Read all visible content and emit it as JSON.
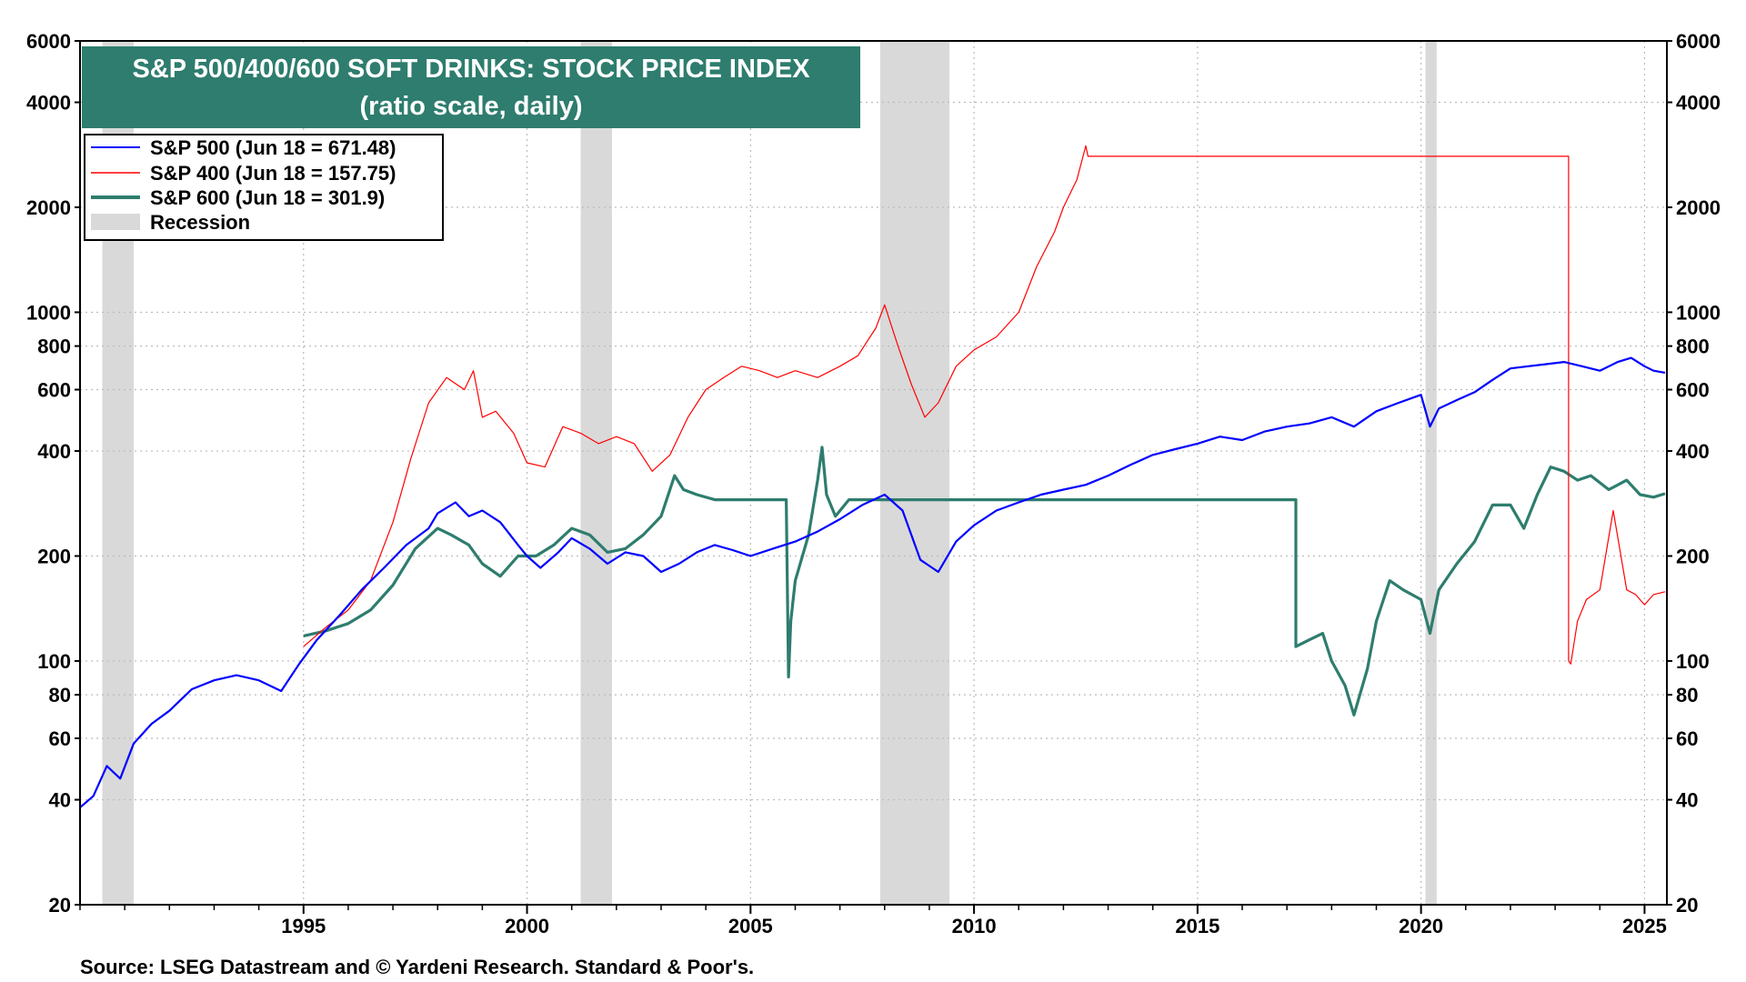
{
  "chart_data": {
    "type": "line",
    "title": "S&P 500/400/600 SOFT DRINKS: STOCK PRICE INDEX",
    "subtitle": "(ratio scale, daily)",
    "source": "Source: LSEG Datastream and © Yardeni Research. Standard & Poor's.",
    "y_scale": "log",
    "ylim": [
      20,
      6000
    ],
    "xlim": [
      1990.0,
      2025.5
    ],
    "y_ticks": [
      20,
      40,
      60,
      80,
      100,
      200,
      400,
      600,
      800,
      1000,
      2000,
      4000,
      6000
    ],
    "y_tick_labels": [
      "20",
      "40",
      "60",
      "80",
      "100",
      "200",
      "400",
      "600",
      "800",
      "1000",
      "2000",
      "4000",
      "6000"
    ],
    "x_ticks": [
      1995,
      2000,
      2005,
      2010,
      2015,
      2020,
      2025
    ],
    "x_tick_labels": [
      "1995",
      "2000",
      "2005",
      "2010",
      "2015",
      "2020",
      "2025"
    ],
    "grid": true,
    "legend_position": "top-left",
    "recessions": [
      {
        "label": "Recession",
        "start": 1990.5,
        "end": 1991.2
      },
      {
        "label": "Recession",
        "start": 2001.2,
        "end": 2001.9
      },
      {
        "label": "Recession",
        "start": 2007.9,
        "end": 2009.45
      },
      {
        "label": "Recession",
        "start": 2020.1,
        "end": 2020.35
      }
    ],
    "legend": [
      {
        "name": "S&P 500 (Jun 18 = 671.48)",
        "color": "#0000ff"
      },
      {
        "name": "S&P 400 (Jun 18 = 157.75)",
        "color": "#ff0000"
      },
      {
        "name": "S&P 600 (Jun 18 = 301.9)",
        "color": "#2e7d6e"
      },
      {
        "name": "Recession",
        "color": "#d9d9d9"
      }
    ],
    "series": [
      {
        "name": "S&P 500",
        "color": "#0000ff",
        "width": 2.2,
        "x": [
          1990.0,
          1990.3,
          1990.6,
          1990.9,
          1991.2,
          1991.6,
          1992.0,
          1992.5,
          1993.0,
          1993.5,
          1994.0,
          1994.5,
          1994.9,
          1995.3,
          1995.8,
          1996.3,
          1996.8,
          1997.3,
          1997.8,
          1998.0,
          1998.4,
          1998.7,
          1999.0,
          1999.4,
          1999.8,
          2000.0,
          2000.3,
          2000.7,
          2001.0,
          2001.4,
          2001.8,
          2002.2,
          2002.6,
          2003.0,
          2003.4,
          2003.8,
          2004.2,
          2004.6,
          2005.0,
          2005.5,
          2006.0,
          2006.5,
          2007.0,
          2007.5,
          2008.0,
          2008.4,
          2008.8,
          2009.2,
          2009.6,
          2010.0,
          2010.5,
          2011.0,
          2011.5,
          2012.0,
          2012.5,
          2013.0,
          2013.5,
          2014.0,
          2014.5,
          2015.0,
          2015.5,
          2016.0,
          2016.5,
          2017.0,
          2017.5,
          2018.0,
          2018.5,
          2019.0,
          2019.5,
          2020.0,
          2020.2,
          2020.4,
          2020.8,
          2021.2,
          2021.6,
          2022.0,
          2022.4,
          2022.8,
          2023.2,
          2023.6,
          2024.0,
          2024.4,
          2024.7,
          2025.0,
          2025.2,
          2025.46
        ],
        "y": [
          38,
          41,
          50,
          46,
          58,
          66,
          72,
          83,
          88,
          91,
          88,
          82,
          98,
          115,
          135,
          160,
          185,
          215,
          240,
          265,
          285,
          260,
          270,
          250,
          215,
          200,
          185,
          205,
          225,
          210,
          190,
          205,
          200,
          180,
          190,
          205,
          215,
          208,
          200,
          210,
          220,
          235,
          255,
          280,
          300,
          270,
          195,
          180,
          220,
          245,
          270,
          285,
          300,
          310,
          320,
          340,
          365,
          390,
          405,
          420,
          440,
          430,
          455,
          470,
          480,
          500,
          470,
          520,
          550,
          580,
          470,
          530,
          560,
          590,
          640,
          690,
          700,
          710,
          720,
          700,
          680,
          720,
          740,
          700,
          680,
          671
        ]
      },
      {
        "name": "S&P 400",
        "color": "#ff0000",
        "width": 1.2,
        "x": [
          1995.0,
          1995.5,
          1996.0,
          1996.5,
          1997.0,
          1997.4,
          1997.8,
          1998.2,
          1998.6,
          1998.8,
          1999.0,
          1999.3,
          1999.7,
          2000.0,
          2000.4,
          2000.8,
          2001.2,
          2001.6,
          2002.0,
          2002.4,
          2002.8,
          2003.2,
          2003.6,
          2004.0,
          2004.4,
          2004.8,
          2005.2,
          2005.6,
          2006.0,
          2006.5,
          2007.0,
          2007.4,
          2007.8,
          2008.0,
          2008.3,
          2008.6,
          2008.9,
          2009.2,
          2009.6,
          2010.0,
          2010.5,
          2011.0,
          2011.4,
          2011.8,
          2012.0,
          2012.3,
          2012.5,
          2012.55,
          2015.0,
          2020.0,
          2023.3,
          2023.3,
          2023.35,
          2023.5,
          2023.7,
          2024.0,
          2024.3,
          2024.6,
          2024.8,
          2025.0,
          2025.2,
          2025.46
        ],
        "y": [
          110,
          125,
          140,
          170,
          250,
          380,
          550,
          650,
          600,
          680,
          500,
          520,
          450,
          370,
          360,
          470,
          450,
          420,
          440,
          420,
          350,
          390,
          500,
          600,
          650,
          700,
          680,
          650,
          680,
          650,
          700,
          750,
          900,
          1050,
          800,
          620,
          500,
          550,
          700,
          780,
          850,
          1000,
          1350,
          1700,
          2000,
          2400,
          3000,
          2800,
          2800,
          2800,
          2800,
          100,
          98,
          130,
          150,
          160,
          270,
          160,
          155,
          145,
          155,
          158
        ]
      },
      {
        "name": "S&P 600",
        "color": "#2e7d6e",
        "width": 3.2,
        "x": [
          1995.0,
          1995.5,
          1996.0,
          1996.5,
          1997.0,
          1997.5,
          1998.0,
          1998.3,
          1998.7,
          1999.0,
          1999.4,
          1999.8,
          2000.2,
          2000.6,
          2001.0,
          2001.4,
          2001.8,
          2002.2,
          2002.6,
          2003.0,
          2003.3,
          2003.5,
          2003.8,
          2004.2,
          2005.0,
          2005.5,
          2005.8,
          2005.85,
          2005.9,
          2006.0,
          2006.3,
          2006.5,
          2006.6,
          2006.7,
          2006.9,
          2007.2,
          2010.0,
          2015.0,
          2017.2,
          2017.2,
          2017.5,
          2017.8,
          2018.0,
          2018.3,
          2018.5,
          2018.8,
          2019.0,
          2019.3,
          2019.6,
          2020.0,
          2020.2,
          2020.4,
          2020.8,
          2021.2,
          2021.6,
          2022.0,
          2022.3,
          2022.6,
          2022.9,
          2023.2,
          2023.5,
          2023.8,
          2024.2,
          2024.6,
          2024.9,
          2025.2,
          2025.46
        ],
        "y": [
          118,
          122,
          128,
          140,
          165,
          210,
          240,
          230,
          215,
          190,
          175,
          200,
          200,
          215,
          240,
          230,
          205,
          210,
          230,
          260,
          340,
          310,
          300,
          290,
          290,
          290,
          290,
          90,
          130,
          170,
          230,
          330,
          410,
          300,
          260,
          290,
          290,
          290,
          290,
          110,
          115,
          120,
          100,
          85,
          70,
          95,
          130,
          170,
          160,
          150,
          120,
          160,
          190,
          220,
          280,
          280,
          240,
          300,
          360,
          350,
          330,
          340,
          310,
          330,
          300,
          295,
          302
        ]
      }
    ]
  }
}
